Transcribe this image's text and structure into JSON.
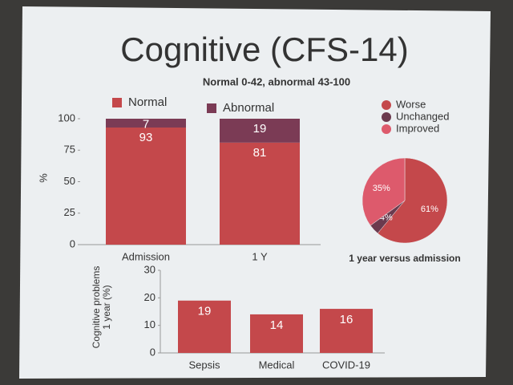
{
  "slide": {
    "title": "Cognitive (CFS-14)",
    "subtitle": "Normal 0-42, abnormal 43-100"
  },
  "chart_data": [
    {
      "type": "stacked-bar",
      "categories": [
        "Admission",
        "1 Y"
      ],
      "series": [
        {
          "name": "Normal",
          "color": "#c4484b",
          "values": [
            93,
            81
          ]
        },
        {
          "name": "Abnormal",
          "color": "#7b3b55",
          "values": [
            7,
            19
          ]
        }
      ],
      "ylim": [
        0,
        100
      ],
      "yticks": [
        0,
        25,
        50,
        75,
        100
      ],
      "y_label": "%"
    },
    {
      "type": "pie",
      "title": "1 year versus admission",
      "categories": [
        "Worse",
        "Unchanged",
        "Improved"
      ],
      "values": [
        61,
        4,
        35
      ],
      "value_labels": [
        "61%",
        "4%",
        "35%"
      ],
      "colors": [
        "#c4484b",
        "#6b3a4e",
        "#dd5a6c"
      ]
    },
    {
      "type": "bar",
      "categories": [
        "Sepsis",
        "Medical",
        "COVID-19"
      ],
      "values": [
        19,
        14,
        16
      ],
      "color": "#c4484b",
      "ylim": [
        0,
        30
      ],
      "yticks": [
        0,
        10,
        20,
        30
      ],
      "y_label": "Cognitive problems 1 year (%)"
    }
  ]
}
